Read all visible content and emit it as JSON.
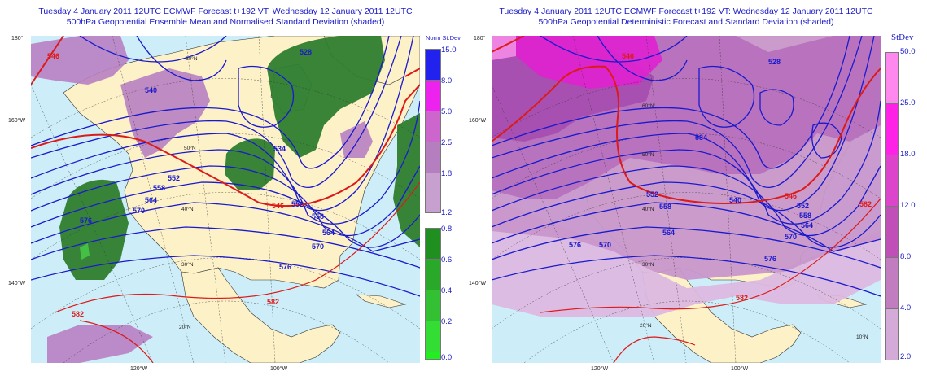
{
  "left": {
    "title_line1": "Tuesday 4 January 2011 12UTC ECMWF Forecast t+192  VT: Wednesday 12 January 2011 12UTC",
    "title_line2": "500hPa Geopotential Ensemble Mean and Normalised Standard Deviation (shaded)",
    "legend_title": "Norm St.Dev",
    "legend_values": [
      "15.0",
      "8.0",
      "5.0",
      "2.5",
      "1.8",
      "1.2",
      "0.8",
      "0.6",
      "0.4",
      "0.2",
      "0.0"
    ],
    "legend_colors": [
      "#2222ee",
      "#ee22ee",
      "#cc66cc",
      "#b57fbf",
      "#c7a0cf",
      "#1f8f1f",
      "#2aa82a",
      "#33c133",
      "#33dd33",
      "#22ee22"
    ],
    "contour_labels": [
      "546",
      "552",
      "558",
      "534",
      "540",
      "528",
      "564",
      "570",
      "576",
      "582",
      "546",
      "552",
      "558",
      "564",
      "570",
      "576",
      "582"
    ],
    "lat_labels": [
      "60°N",
      "50°N",
      "40°N",
      "30°N",
      "20°N"
    ],
    "side_labels": [
      "180°",
      "160°W",
      "140°W"
    ],
    "bottom_labels": [
      "120°W",
      "100°W"
    ]
  },
  "right": {
    "title_line1": "Tuesday 4 January 2011 12UTC ECMWF Forecast t+192  VT: Wednesday 12 January 2011 12UTC",
    "title_line2": "500hPa Geopotential Deterministic Forecast and Standard Deviation (shaded)",
    "legend_title": "StDev",
    "legend_values": [
      "50.0",
      "25.0",
      "18.0",
      "12.0",
      "8.0",
      "4.0",
      "2.0"
    ],
    "legend_colors": [
      "#ff88ee",
      "#ff22e6",
      "#dd44cc",
      "#c050b8",
      "#c27dc0",
      "#d4aad8"
    ],
    "contour_labels": [
      "546",
      "552",
      "558",
      "534",
      "540",
      "528",
      "564",
      "570",
      "576",
      "582",
      "546",
      "552",
      "558",
      "564",
      "570",
      "576",
      "582"
    ],
    "lat_labels": [
      "60°N",
      "50°N",
      "40°N",
      "30°N",
      "20°N",
      "10°N"
    ],
    "side_labels": [
      "180°",
      "160°W",
      "140°W"
    ],
    "bottom_labels": [
      "120°W",
      "100°W"
    ]
  }
}
